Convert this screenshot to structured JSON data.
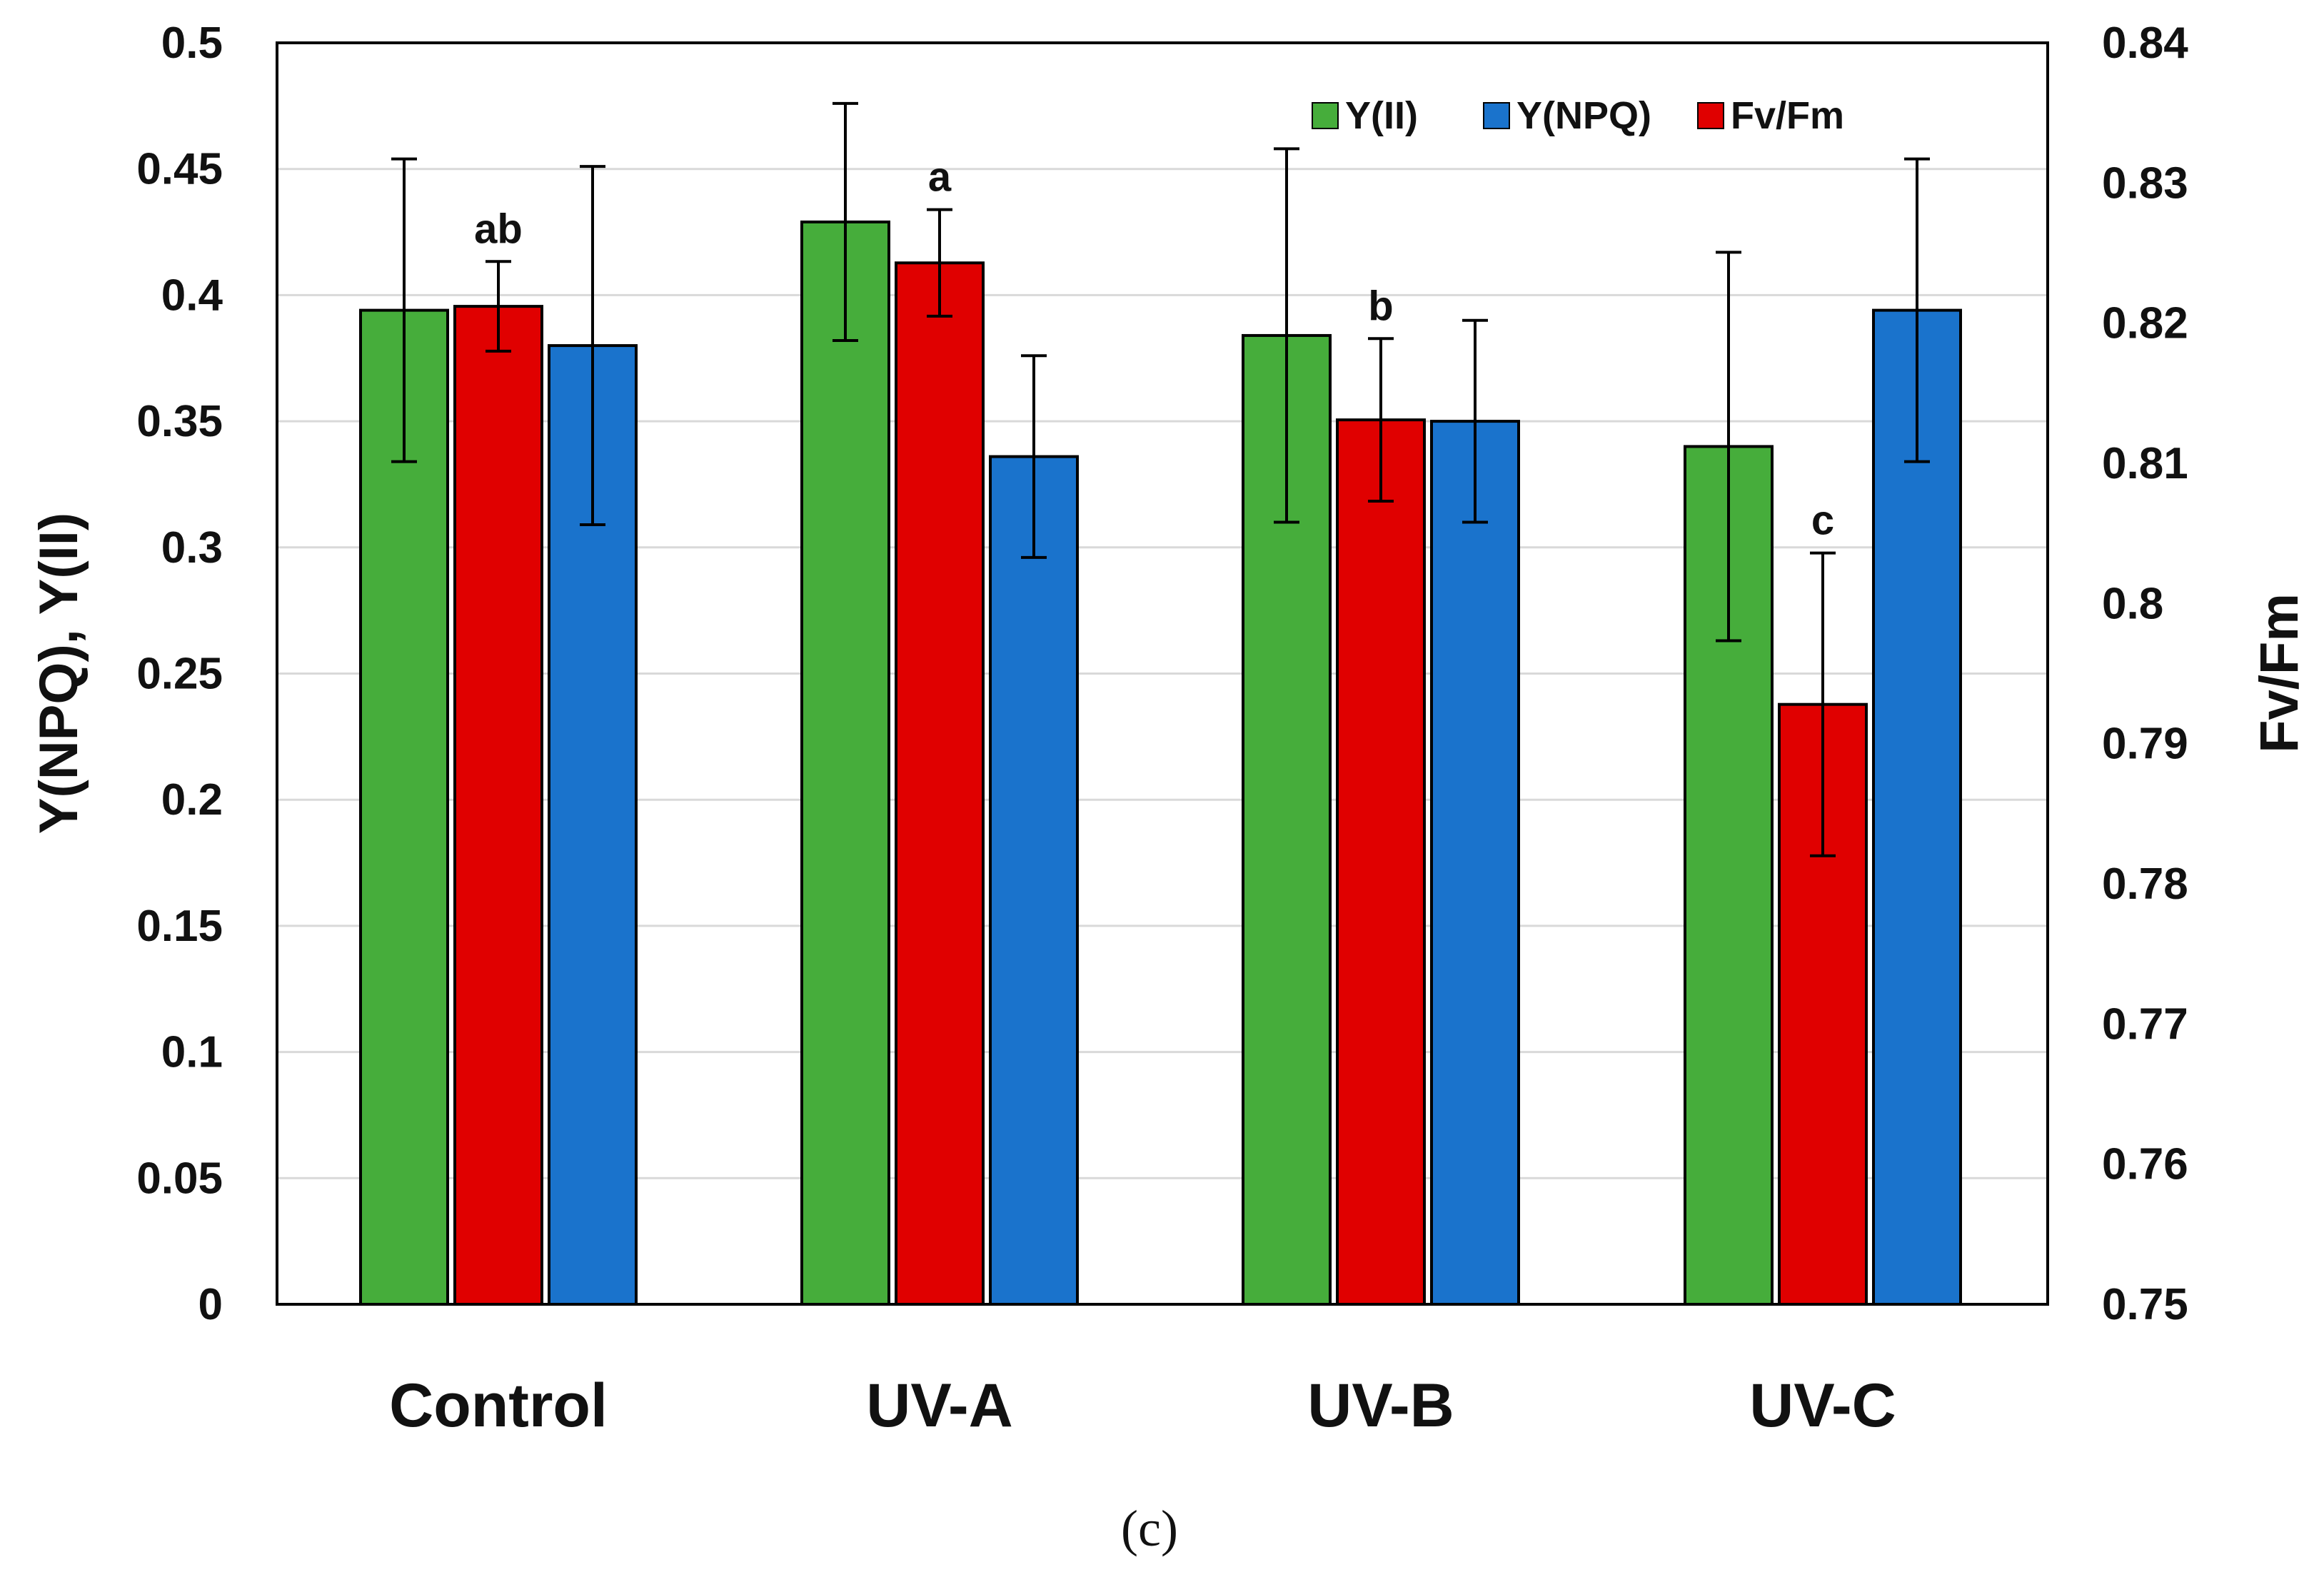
{
  "chart_data": {
    "type": "bar",
    "categories": [
      "Control",
      "UV-A",
      "UV-B",
      "UV-C"
    ],
    "series": [
      {
        "name": "Y(II)",
        "axis": "left",
        "color": "#46ad3b",
        "values": [
          0.394,
          0.429,
          0.384,
          0.34
        ],
        "error": [
          0.06,
          0.047,
          0.074,
          0.077
        ]
      },
      {
        "name": "Fv/Fm",
        "axis": "right",
        "color": "#e00000",
        "values": [
          0.8212,
          0.8243,
          0.8131,
          0.7928
        ],
        "error": [
          0.0032,
          0.0038,
          0.0058,
          0.0108
        ],
        "significance": [
          "ab",
          "a",
          "b",
          "c"
        ]
      },
      {
        "name": "Y(NPQ)",
        "axis": "left",
        "color": "#1a73cc",
        "values": [
          0.38,
          0.336,
          0.35,
          0.394
        ],
        "error": [
          0.071,
          0.04,
          0.04,
          0.06
        ]
      }
    ],
    "left_axis": {
      "label": "Y(NPQ), Y(II)",
      "ylim": [
        0,
        0.5
      ],
      "ticks": [
        "0",
        "0.05",
        "0.1",
        "0.15",
        "0.2",
        "0.25",
        "0.3",
        "0.35",
        "0.4",
        "0.45",
        "0.5"
      ]
    },
    "right_axis": {
      "label": "Fv/Fm",
      "ylim": [
        0.75,
        0.84
      ],
      "ticks": [
        "0.75",
        "0.76",
        "0.77",
        "0.78",
        "0.79",
        "0.8",
        "0.81",
        "0.82",
        "0.83",
        "0.84"
      ]
    },
    "legend": [
      "Y(II)",
      "Y(NPQ)",
      "Fv/Fm"
    ],
    "legend_position": "top-right",
    "grid": true,
    "caption": "(c)"
  }
}
